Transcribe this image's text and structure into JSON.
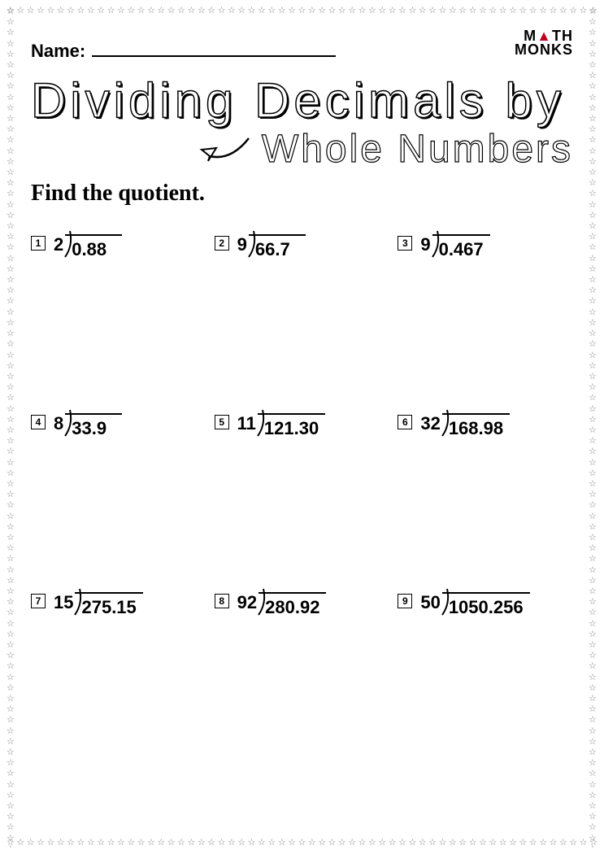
{
  "logo": {
    "line1": "M",
    "tri": "▲",
    "line1b": "TH",
    "line2": "MONKS"
  },
  "name_label": "Name:",
  "title_main": "Dividing Decimals by",
  "title_sub": "Whole Numbers",
  "instruction": "Find the quotient.",
  "problems": [
    {
      "n": "1",
      "divisor": "2",
      "dividend": "0.88"
    },
    {
      "n": "2",
      "divisor": "9",
      "dividend": "66.7"
    },
    {
      "n": "3",
      "divisor": "9",
      "dividend": "0.467"
    },
    {
      "n": "4",
      "divisor": "8",
      "dividend": "33.9"
    },
    {
      "n": "5",
      "divisor": "11",
      "dividend": "121.30"
    },
    {
      "n": "6",
      "divisor": "32",
      "dividend": "168.98"
    },
    {
      "n": "7",
      "divisor": "15",
      "dividend": "275.15"
    },
    {
      "n": "8",
      "divisor": "92",
      "dividend": "280.92"
    },
    {
      "n": "9",
      "divisor": "50",
      "dividend": "1050.256"
    }
  ],
  "colors": {
    "page_bg": "#ffffff",
    "text": "#000000",
    "star_border": "#808080",
    "logo_accent": "#c00020"
  }
}
